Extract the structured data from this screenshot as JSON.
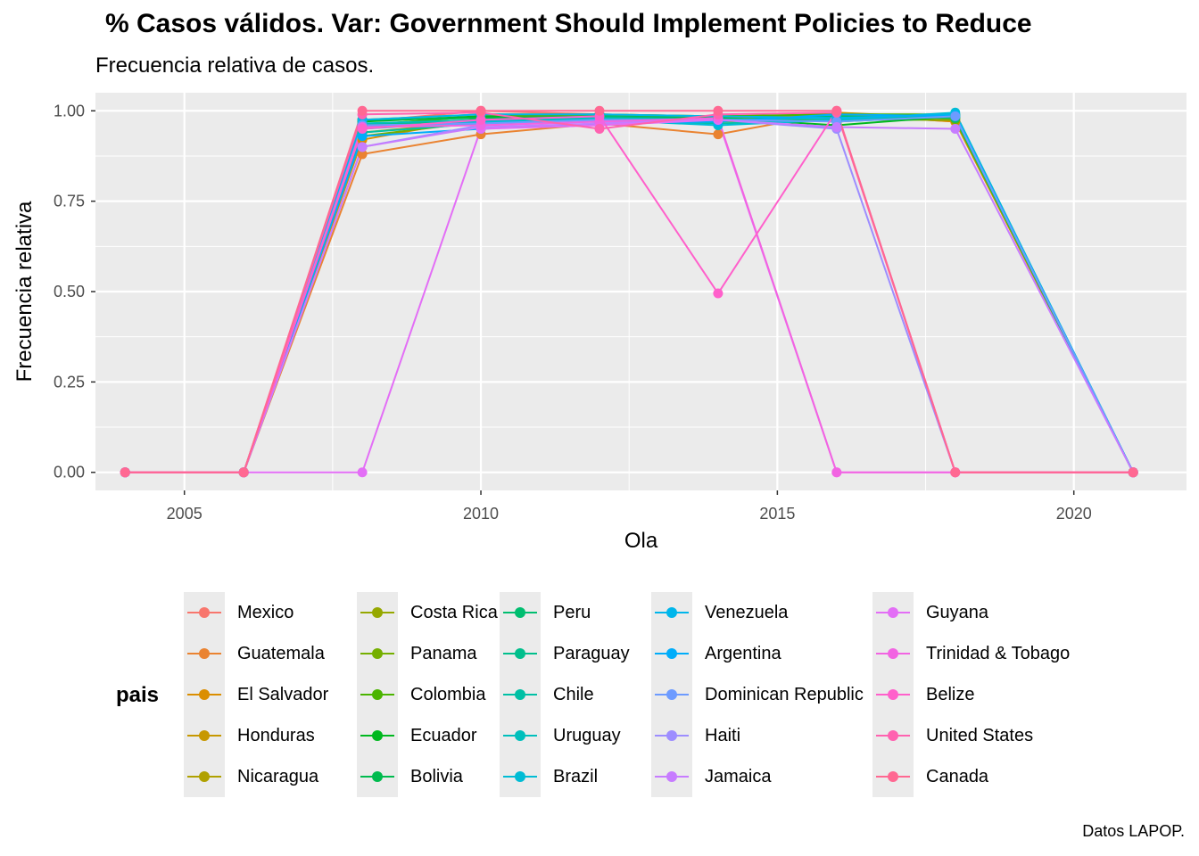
{
  "title": "% Casos válidos. Var: Government Should Implement Policies to Reduce",
  "subtitle": "Frecuencia relativa de casos.",
  "caption": "Datos LAPOP.",
  "chart_data": {
    "type": "line",
    "xlabel": "Ola",
    "ylabel": "Frecuencia relativa",
    "xlim": [
      2003.5,
      2021.9
    ],
    "ylim": [
      -0.05,
      1.05
    ],
    "x_ticks": [
      2005,
      2010,
      2015,
      2020
    ],
    "y_ticks": [
      "0.00",
      "0.25",
      "0.50",
      "0.75",
      "1.00"
    ],
    "y_tick_values": [
      0,
      0.25,
      0.5,
      0.75,
      1.0
    ],
    "grid": true,
    "legend_placement": "bottom",
    "legend_title": "pais",
    "x": [
      2004,
      2006,
      2008,
      2010,
      2012,
      2014,
      2016,
      2018,
      2021
    ],
    "series": [
      {
        "name": "Mexico",
        "color": "#F8766D",
        "values": [
          0,
          0,
          0.97,
          1.0,
          0.99,
          0.98,
          0.99,
          0.97,
          0
        ]
      },
      {
        "name": "Guatemala",
        "color": "#EA8331",
        "values": [
          0,
          0,
          0.88,
          0.935,
          0.965,
          0.935,
          0.995,
          0.975,
          0
        ]
      },
      {
        "name": "El Salvador",
        "color": "#DB8E00",
        "values": [
          0,
          0,
          0.92,
          0.98,
          0.985,
          0.98,
          0.99,
          0.97,
          0
        ]
      },
      {
        "name": "Honduras",
        "color": "#C79800",
        "values": [
          0,
          0,
          0.94,
          0.97,
          0.98,
          0.975,
          0.995,
          0.98,
          0
        ]
      },
      {
        "name": "Nicaragua",
        "color": "#B0A100",
        "values": [
          0,
          0,
          0.96,
          0.985,
          0.985,
          0.98,
          0.99,
          0.98,
          0
        ]
      },
      {
        "name": "Costa Rica",
        "color": "#96A800",
        "values": [
          0,
          0,
          0.975,
          0.99,
          0.99,
          0.985,
          0.99,
          0.985,
          0
        ]
      },
      {
        "name": "Panama",
        "color": "#75AF00",
        "values": [
          0,
          0,
          0.93,
          0.97,
          0.975,
          0.97,
          0.975,
          0.975,
          0
        ]
      },
      {
        "name": "Colombia",
        "color": "#4BB400",
        "values": [
          0,
          0,
          0.96,
          0.985,
          0.99,
          0.985,
          0.99,
          0.99,
          0
        ]
      },
      {
        "name": "Ecuador",
        "color": "#00B81F",
        "values": [
          0,
          0,
          0.97,
          0.985,
          0.975,
          0.98,
          0.96,
          0.985,
          0
        ]
      },
      {
        "name": "Bolivia",
        "color": "#00BB4E",
        "values": [
          0,
          0,
          0.975,
          0.98,
          0.985,
          0.98,
          0.97,
          0.985,
          0
        ]
      },
      {
        "name": "Peru",
        "color": "#00BE70",
        "values": [
          0,
          0,
          0.96,
          0.975,
          0.985,
          0.975,
          0.985,
          0.98,
          0
        ]
      },
      {
        "name": "Paraguay",
        "color": "#00BF8C",
        "values": [
          0,
          0,
          0.955,
          0.97,
          0.98,
          0.975,
          0.98,
          0.985,
          0
        ]
      },
      {
        "name": "Chile",
        "color": "#00C0A5",
        "values": [
          0,
          0,
          0.94,
          0.965,
          0.975,
          0.965,
          0.975,
          0.985,
          0
        ]
      },
      {
        "name": "Uruguay",
        "color": "#00BFBC",
        "values": [
          0,
          0,
          0.965,
          0.975,
          0.98,
          0.975,
          0.98,
          0.99,
          0
        ]
      },
      {
        "name": "Brazil",
        "color": "#00BCD5",
        "values": [
          0,
          0,
          0.95,
          0.97,
          0.975,
          0.96,
          0.975,
          0.995,
          0
        ]
      },
      {
        "name": "Venezuela",
        "color": "#00B6EB",
        "values": [
          0,
          0,
          0.975,
          0.99,
          0.99,
          0.985,
          0.98,
          0.99,
          0
        ]
      },
      {
        "name": "Argentina",
        "color": "#00ADFA",
        "values": [
          0,
          0,
          0.93,
          0.95,
          0.965,
          0.97,
          0.99,
          0.985,
          0
        ]
      },
      {
        "name": "Dominican Republic",
        "color": "#6D9BFF",
        "values": [
          0,
          0,
          0.96,
          0.965,
          0.975,
          0.975,
          0.97,
          0.985,
          0
        ]
      },
      {
        "name": "Haiti",
        "color": "#9D8DFF",
        "values": [
          0,
          0,
          0.9,
          0.96,
          0.97,
          0.975,
          0.95,
          0,
          0
        ]
      },
      {
        "name": "Jamaica",
        "color": "#C77CFF",
        "values": [
          0,
          0,
          0.9,
          0.955,
          0.965,
          0.975,
          0.955,
          0.95,
          0
        ]
      },
      {
        "name": "Guyana",
        "color": "#E36EF6",
        "values": [
          0,
          0,
          0,
          0.95,
          0.96,
          0.975,
          0,
          0,
          0
        ]
      },
      {
        "name": "Trinidad & Tobago",
        "color": "#F264E2",
        "values": [
          0,
          0,
          0.955,
          0.96,
          0.97,
          0.98,
          0,
          0,
          0
        ]
      },
      {
        "name": "Belize",
        "color": "#FF60CB",
        "values": [
          0,
          0,
          0.95,
          0.975,
          0.985,
          0.495,
          1.0,
          0,
          0
        ]
      },
      {
        "name": "United States",
        "color": "#FF62B0",
        "values": [
          0,
          0,
          0.99,
          0.995,
          0.95,
          0.99,
          0.995,
          0,
          0
        ]
      },
      {
        "name": "Canada",
        "color": "#FF6892",
        "values": [
          0,
          0,
          1.0,
          1.0,
          1.0,
          1.0,
          1.0,
          0,
          0
        ]
      }
    ]
  }
}
